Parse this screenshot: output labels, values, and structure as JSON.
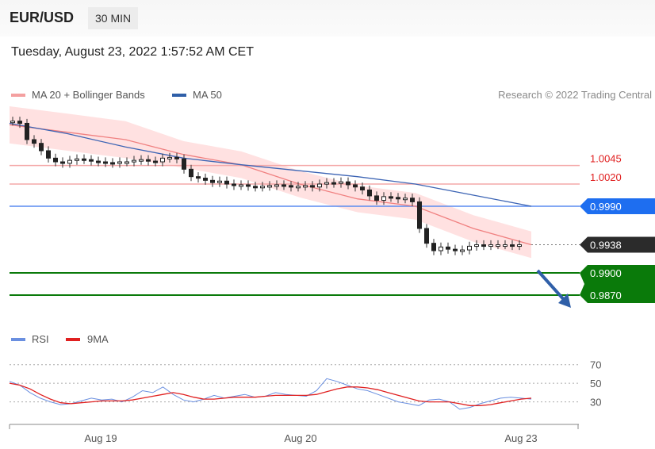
{
  "header": {
    "symbol": "EUR/USD",
    "timeframe": "30 MIN"
  },
  "timestamp": "Tuesday, August 23, 2022 1:57:52 AM CET",
  "legend": {
    "ma20_label": "MA 20 + Bollinger Bands",
    "ma50_label": "MA 50",
    "credit": "Research © 2022 Trading Central"
  },
  "rsi_legend": {
    "rsi_label": "RSI",
    "ma9_label": "9MA"
  },
  "colors": {
    "ma20": "#f08080",
    "ma50": "#3c64b4",
    "bands": "#ffd7d7",
    "red_level": "#f4a8a8",
    "blue_level": "#5a8cf0",
    "green_level": "#0a7a0a",
    "arrow": "#2f5fa8",
    "last_tag": "#2b2b2b"
  },
  "chart_data": [
    {
      "type": "line",
      "title": "",
      "xlabel": "",
      "ylabel": "",
      "x_ticks": [
        "Aug 19",
        "Aug 20",
        "Aug 23"
      ],
      "ylim": [
        0.984,
        1.011
      ],
      "levels": [
        {
          "label": "1.0045",
          "value": 1.0045,
          "style": "resistance",
          "color": "#e02020"
        },
        {
          "label": "1.0020",
          "value": 1.002,
          "style": "resistance",
          "color": "#e02020"
        },
        {
          "label": "0.9990",
          "value": 0.999,
          "style": "pivot",
          "color": "#5a8cf0"
        },
        {
          "label": "0.9938",
          "value": 0.9938,
          "style": "last",
          "color": "#2b2b2b"
        },
        {
          "label": "0.9900",
          "value": 0.99,
          "style": "support",
          "color": "#0a7a0a"
        },
        {
          "label": "0.9870",
          "value": 0.987,
          "style": "support",
          "color": "#0a7a0a"
        }
      ],
      "series": [
        {
          "name": "MA 20 + Bollinger Bands",
          "values": [
            1.01,
            1.009,
            1.008,
            1.006,
            1.0046,
            1.002,
            1.0,
            0.999,
            0.996,
            0.9938
          ]
        },
        {
          "name": "MA 50",
          "values": [
            1.0102,
            1.0088,
            1.007,
            1.0055,
            1.0046,
            1.0038,
            1.003,
            1.002,
            1.0005,
            0.999
          ]
        }
      ],
      "price_path": [
        1.0105,
        1.0102,
        1.008,
        1.0075,
        1.0065,
        1.0055,
        1.005,
        1.0048,
        1.0052,
        1.0054,
        1.0053,
        1.0051,
        1.005,
        1.0049,
        1.0048,
        1.005,
        1.005,
        1.0052,
        1.0053,
        1.0051,
        1.005,
        1.0055,
        1.0056,
        1.0054,
        1.004,
        1.003,
        1.0028,
        1.0025,
        1.0022,
        1.0024,
        1.002,
        1.0018,
        1.0019,
        1.0017,
        1.0016,
        1.0017,
        1.0018,
        1.0019,
        1.0018,
        1.0016,
        1.0017,
        1.0018,
        1.0016,
        1.002,
        1.0022,
        1.0021,
        1.0023,
        1.0019,
        1.0016,
        1.0012,
        1.0004,
        0.9998,
        1.0003,
        1.0002,
        1.0,
        1.0001,
        0.9996,
        0.996,
        0.994,
        0.993,
        0.9935,
        0.9932,
        0.993,
        0.9931,
        0.9936,
        0.9938,
        0.9937,
        0.9938,
        0.9938,
        0.9938,
        0.9937,
        0.9938
      ]
    },
    {
      "type": "line",
      "title": "",
      "ylim": [
        10,
        80
      ],
      "y_ticks": [
        30,
        50,
        70
      ],
      "series": [
        {
          "name": "RSI",
          "values": [
            52,
            48,
            40,
            34,
            30,
            27,
            28,
            31,
            34,
            32,
            33,
            30,
            35,
            42,
            40,
            46,
            38,
            32,
            30,
            33,
            37,
            34,
            36,
            38,
            35,
            36,
            40,
            38,
            37,
            36,
            42,
            55,
            52,
            48,
            44,
            42,
            38,
            34,
            30,
            28,
            26,
            32,
            33,
            30,
            22,
            24,
            28,
            31,
            34,
            35,
            34,
            33
          ]
        },
        {
          "name": "9MA",
          "values": [
            50,
            48,
            44,
            38,
            33,
            29,
            28,
            29,
            30,
            31,
            31,
            31,
            32,
            34,
            36,
            38,
            40,
            38,
            35,
            33,
            33,
            34,
            35,
            35,
            35,
            36,
            37,
            37,
            37,
            37,
            38,
            41,
            44,
            46,
            46,
            45,
            43,
            40,
            37,
            34,
            31,
            30,
            30,
            30,
            28,
            26,
            26,
            27,
            29,
            31,
            33,
            34
          ]
        }
      ]
    }
  ]
}
